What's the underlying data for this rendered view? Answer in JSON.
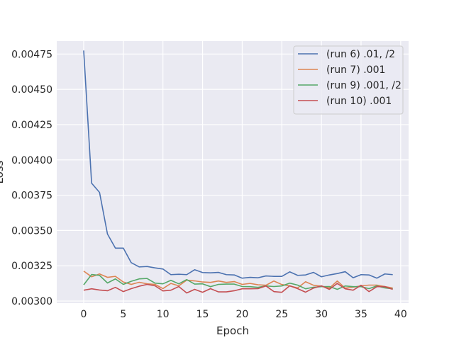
{
  "chart_data": {
    "type": "line",
    "title": "",
    "xlabel": "Epoch",
    "ylabel": "Loss",
    "xlim": [
      -3.4,
      41.0
    ],
    "ylim": [
      0.002985,
      0.004842
    ],
    "x_ticks": [
      0,
      5,
      10,
      15,
      20,
      25,
      30,
      35,
      40
    ],
    "y_ticks": [
      0.003,
      0.00325,
      0.0035,
      0.00375,
      0.004,
      0.00425,
      0.0045,
      0.00475
    ],
    "y_tick_labels": [
      "0.00300",
      "0.00325",
      "0.00350",
      "0.00375",
      "0.00400",
      "0.00425",
      "0.00450",
      "0.00475"
    ],
    "grid": true,
    "legend_position": "top-right",
    "background": "#eaeaf2",
    "x": [
      0,
      1,
      2,
      3,
      4,
      5,
      6,
      7,
      8,
      9,
      10,
      11,
      12,
      13,
      14,
      15,
      16,
      17,
      18,
      19,
      20,
      21,
      22,
      23,
      24,
      25,
      26,
      27,
      28,
      29,
      30,
      31,
      32,
      33,
      34,
      35,
      36,
      37,
      38,
      39
    ],
    "series": [
      {
        "name": "(run 6) .01, /2",
        "color": "#4c72b0",
        "values": [
          0.004775,
          0.003835,
          0.00377,
          0.003475,
          0.003375,
          0.003375,
          0.003272,
          0.003242,
          0.003245,
          0.003235,
          0.003227,
          0.003187,
          0.00319,
          0.003187,
          0.003222,
          0.003202,
          0.0032,
          0.003203,
          0.003187,
          0.003185,
          0.003162,
          0.003168,
          0.003165,
          0.003178,
          0.003175,
          0.003175,
          0.003207,
          0.003182,
          0.003185,
          0.003203,
          0.003172,
          0.003185,
          0.003195,
          0.003208,
          0.003165,
          0.003187,
          0.003185,
          0.003162,
          0.003192,
          0.003187
        ]
      },
      {
        "name": "(run 7) .001",
        "color": "#dd8452",
        "values": [
          0.003212,
          0.003172,
          0.003192,
          0.003168,
          0.003175,
          0.003135,
          0.003118,
          0.003133,
          0.003122,
          0.003118,
          0.003088,
          0.003125,
          0.003108,
          0.003148,
          0.003143,
          0.003135,
          0.003132,
          0.003142,
          0.003132,
          0.003138,
          0.003118,
          0.003125,
          0.003115,
          0.003112,
          0.003142,
          0.003117,
          0.003107,
          0.003093,
          0.003137,
          0.003112,
          0.003105,
          0.003092,
          0.003142,
          0.003092,
          0.003098,
          0.003108,
          0.003113,
          0.003113,
          0.003103,
          0.003092
        ]
      },
      {
        "name": "(run 9) .001, /2",
        "color": "#55a868",
        "values": [
          0.003115,
          0.003188,
          0.003182,
          0.003128,
          0.003157,
          0.003118,
          0.00314,
          0.003157,
          0.00316,
          0.003127,
          0.003122,
          0.003147,
          0.003122,
          0.003152,
          0.00312,
          0.003122,
          0.003102,
          0.003118,
          0.00312,
          0.00312,
          0.003103,
          0.003102,
          0.003097,
          0.003107,
          0.003103,
          0.003107,
          0.003127,
          0.003113,
          0.003087,
          0.003098,
          0.003102,
          0.003103,
          0.003083,
          0.003107,
          0.003102,
          0.003102,
          0.003088,
          0.003107,
          0.003093,
          0.003087
        ]
      },
      {
        "name": "(run 10) .001",
        "color": "#c44e52",
        "values": [
          0.003077,
          0.003087,
          0.003078,
          0.003073,
          0.003097,
          0.003067,
          0.003088,
          0.003105,
          0.003118,
          0.003108,
          0.003072,
          0.003077,
          0.003103,
          0.003057,
          0.003083,
          0.003062,
          0.003088,
          0.003065,
          0.003065,
          0.003073,
          0.003087,
          0.003087,
          0.003088,
          0.003107,
          0.003067,
          0.003062,
          0.003108,
          0.003088,
          0.003063,
          0.003092,
          0.003108,
          0.003083,
          0.003125,
          0.003087,
          0.003077,
          0.003112,
          0.003067,
          0.003102,
          0.003102,
          0.003083
        ]
      }
    ]
  }
}
